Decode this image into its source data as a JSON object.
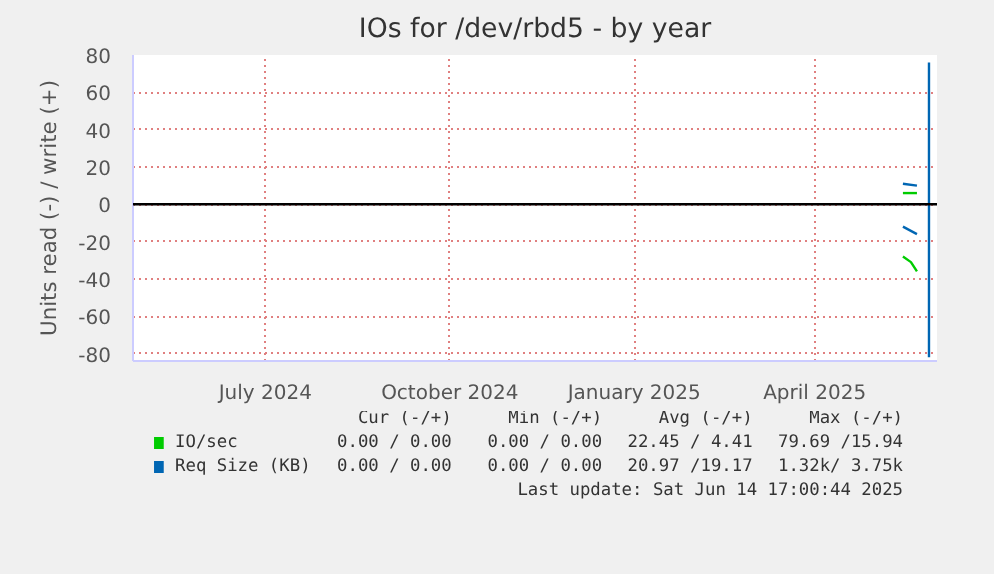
{
  "chart_data": {
    "type": "line",
    "title": "IOs for /dev/rbd5 - by year",
    "ylabel": "Units read (-) / write (+)",
    "xlim": [
      "2024-04-26",
      "2025-06-01"
    ],
    "xticks": [
      {
        "value": "2024-07-01",
        "label": "July 2024"
      },
      {
        "value": "2024-10-01",
        "label": "October 2024"
      },
      {
        "value": "2025-01-01",
        "label": "January 2025"
      },
      {
        "value": "2025-04-01",
        "label": "April 2025"
      }
    ],
    "ylim": [
      -84,
      80
    ],
    "yticks": [
      -80,
      -60,
      -40,
      -20,
      0,
      20,
      40,
      60,
      80
    ],
    "grid": true,
    "legend": "bottom",
    "series": [
      {
        "name": "IO/sec",
        "color": "#00cc00",
        "x": [
          "2025-05-15",
          "2025-05-22"
        ],
        "values": [
          6,
          6
        ]
      },
      {
        "color": "#00cc00",
        "x": [
          "2025-05-15",
          "2025-05-19",
          "2025-05-22"
        ],
        "values": [
          -28,
          -31,
          -36
        ]
      },
      {
        "name": "Req Size (KB)",
        "color": "#0066b3",
        "x": [
          "2025-05-15",
          "2025-05-22"
        ],
        "values": [
          11,
          10
        ]
      },
      {
        "color": "#0066b3",
        "x": [
          "2025-05-15",
          "2025-05-22"
        ],
        "values": [
          -12,
          -16
        ]
      },
      {
        "color": "#0066b3",
        "x": [
          "2025-05-28",
          "2025-05-28"
        ],
        "values": [
          -82,
          76
        ]
      }
    ],
    "ref_lines": [
      {
        "axis": "y",
        "value": 0,
        "label": null,
        "color": "#000000"
      }
    ],
    "annotations": [
      "Cur (-/+)",
      "Min (-/+)",
      "Avg (-/+)",
      "Max (-/+)",
      "0.00 / 0.00",
      "0.00 / 0.00",
      "22.45 / 4.41",
      "79.69 /15.94",
      "0.00 / 0.00",
      "0.00 / 0.00",
      "20.97 /19.17",
      "1.32k/ 3.75k",
      "Last update: Sat Jun 14 17:00:44 2025"
    ]
  }
}
